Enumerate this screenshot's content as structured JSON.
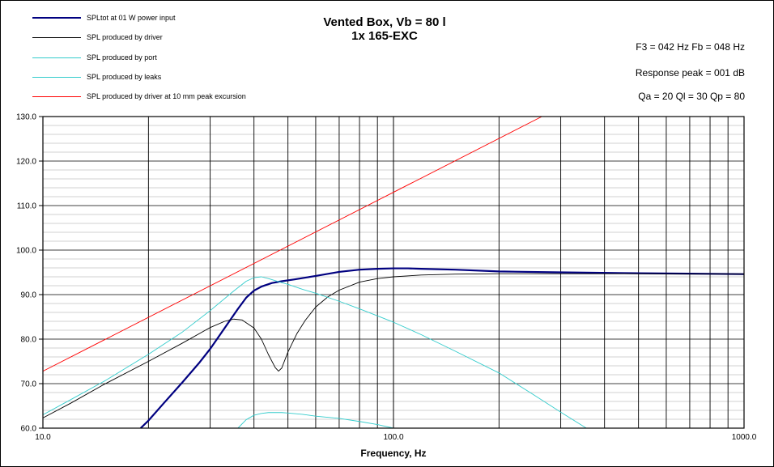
{
  "title": [
    "Vented Box, Vb = 80 l",
    "1x 165-EXC"
  ],
  "info": [
    "F3 = 042 Hz  Fb = 048 Hz",
    "Response  peak = 001 dB",
    "Qa = 20  Ql = 30  Qp = 80"
  ],
  "chart_data": {
    "type": "line",
    "xscale": "log",
    "xlabel": "Frequency, Hz",
    "ylabel": "",
    "xlim": [
      10,
      1000
    ],
    "ylim": [
      60,
      130
    ],
    "grid": true,
    "legend_position": "top-left",
    "x_tick_labels": [
      "10.0",
      "100.0",
      "1000.0"
    ],
    "y_tick_labels": [
      "60.0",
      "70.0",
      "80.0",
      "90.0",
      "100.0",
      "110.0",
      "120.0",
      "130.0"
    ],
    "series": [
      {
        "name": "SPLtot at 01 W power input",
        "color": "#000080",
        "width": 2.2,
        "x": [
          19,
          20,
          22,
          25,
          28,
          30,
          33,
          36,
          38,
          40,
          42,
          45,
          48,
          52,
          56,
          60,
          70,
          80,
          90,
          100,
          110,
          120,
          150,
          200,
          300,
          500,
          700,
          1000
        ],
        "y": [
          60,
          61.7,
          65.4,
          70.3,
          74.8,
          77.8,
          82.5,
          86.8,
          89.3,
          90.9,
          91.8,
          92.6,
          93.0,
          93.4,
          93.8,
          94.2,
          95.1,
          95.6,
          95.8,
          95.9,
          95.9,
          95.8,
          95.6,
          95.2,
          95.0,
          94.8,
          94.7,
          94.6
        ]
      },
      {
        "name": "SPL produced by driver",
        "color": "#000000",
        "width": 0.9,
        "x": [
          10,
          12,
          15,
          20,
          25,
          30,
          33,
          35,
          37,
          40,
          42,
          44,
          46,
          47,
          48,
          50,
          53,
          56,
          60,
          65,
          70,
          80,
          90,
          100,
          120,
          150,
          200,
          300,
          500,
          1000
        ],
        "y": [
          62.3,
          65.6,
          69.9,
          75.0,
          79.1,
          82.6,
          84.0,
          84.5,
          84.3,
          82.5,
          80.0,
          76.5,
          73.6,
          72.8,
          73.5,
          77.1,
          81.2,
          84.2,
          87.2,
          89.5,
          91.0,
          92.8,
          93.6,
          94.0,
          94.4,
          94.6,
          94.7,
          94.7,
          94.7,
          94.6
        ]
      },
      {
        "name": "SPL produced by port",
        "color": "#33cccc",
        "width": 0.9,
        "x": [
          36,
          38,
          40,
          42,
          44,
          46,
          48,
          50,
          55,
          60,
          70,
          80,
          90,
          100
        ],
        "y": [
          60.0,
          61.9,
          62.9,
          63.3,
          63.5,
          63.5,
          63.5,
          63.4,
          63.1,
          62.7,
          62.2,
          61.5,
          60.8,
          60.0
        ]
      },
      {
        "name": "SPL produced by leaks",
        "color": "#33cccc",
        "width": 0.9,
        "x": [
          10,
          12,
          15,
          20,
          25,
          30,
          35,
          38,
          40,
          42,
          44,
          47,
          50,
          55,
          60,
          70,
          80,
          100,
          120,
          150,
          200,
          250,
          300,
          355
        ],
        "y": [
          63.0,
          66.4,
          70.6,
          76.6,
          81.6,
          86.4,
          90.8,
          93.0,
          93.8,
          94.0,
          93.6,
          92.9,
          92.3,
          91.2,
          90.3,
          88.5,
          86.8,
          83.8,
          81.0,
          77.3,
          72.4,
          67.6,
          63.6,
          60.0
        ]
      },
      {
        "name": "SPL produced by driver at 10 mm peak excursion",
        "color": "#ff0000",
        "width": 0.9,
        "x": [
          10,
          265
        ],
        "y": [
          72.8,
          130
        ]
      }
    ]
  }
}
